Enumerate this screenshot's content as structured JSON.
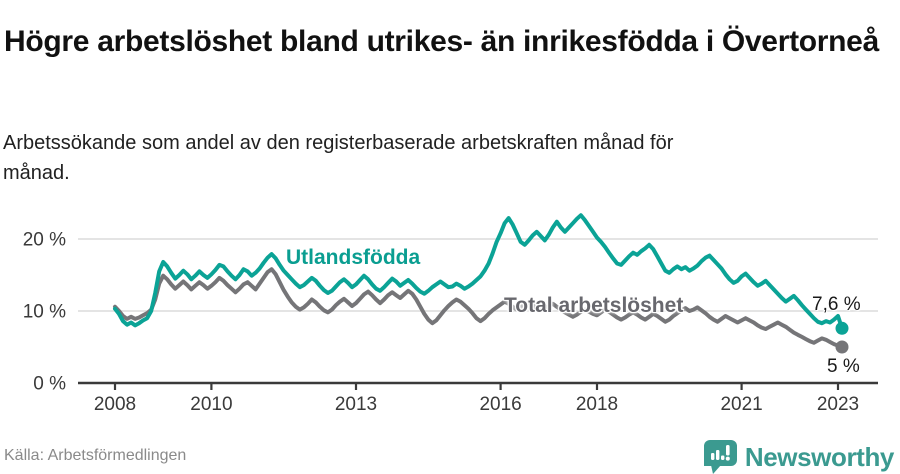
{
  "chart_data": {
    "type": "line",
    "title": "Högre arbetslöshet bland utrikes- än inrikesfödda i Övertorneå",
    "subtitle": "Arbetssökande som andel av den registerbaserade arbetskraften månad för månad.",
    "source": "Källa: Arbetsförmedlingen",
    "x_start_year": 2008,
    "x_unit": "month",
    "x_ticks": [
      2008,
      2010,
      2013,
      2016,
      2018,
      2021,
      2023
    ],
    "y_ticks": [
      0,
      10,
      20
    ],
    "y_tick_labels": [
      "0 %",
      "10 %",
      "20 %"
    ],
    "ylim": [
      0,
      24
    ],
    "grid": "horizontal",
    "legend_position": "inline-labels",
    "series": [
      {
        "name": "Utlandsfödda",
        "color": "#0ba396",
        "label_color": "#0a9e91",
        "end_label": "7,6 %",
        "end_value": 7.6,
        "values": [
          10.3,
          9.6,
          8.6,
          8.1,
          8.4,
          8.0,
          8.3,
          8.7,
          9.0,
          10.0,
          12.5,
          15.5,
          16.8,
          16.2,
          15.3,
          14.5,
          15.0,
          15.6,
          15.1,
          14.4,
          14.9,
          15.5,
          15.0,
          14.6,
          15.1,
          15.7,
          16.4,
          16.2,
          15.5,
          14.9,
          14.4,
          15.0,
          15.8,
          15.5,
          14.9,
          15.3,
          15.9,
          16.7,
          17.4,
          17.9,
          17.3,
          16.4,
          15.6,
          15.0,
          14.4,
          13.8,
          13.3,
          13.6,
          14.1,
          14.6,
          14.2,
          13.5,
          12.9,
          12.5,
          12.8,
          13.4,
          14.0,
          14.4,
          13.9,
          13.3,
          13.7,
          14.3,
          14.9,
          14.4,
          13.7,
          13.1,
          12.8,
          13.3,
          13.9,
          14.5,
          14.1,
          13.5,
          13.9,
          14.3,
          13.8,
          13.2,
          12.7,
          12.4,
          12.8,
          13.3,
          13.7,
          14.1,
          13.7,
          13.3,
          13.4,
          13.8,
          13.5,
          13.1,
          13.4,
          13.8,
          14.3,
          14.8,
          15.6,
          16.6,
          18.0,
          19.6,
          20.8,
          22.2,
          22.9,
          22.0,
          20.8,
          19.6,
          19.2,
          19.8,
          20.5,
          21.0,
          20.4,
          19.8,
          20.6,
          21.6,
          22.4,
          21.6,
          21.0,
          21.6,
          22.2,
          22.8,
          23.3,
          22.6,
          21.8,
          21.0,
          20.2,
          19.6,
          18.9,
          18.1,
          17.3,
          16.6,
          16.4,
          17.0,
          17.6,
          18.1,
          17.8,
          18.3,
          18.7,
          19.2,
          18.6,
          17.6,
          16.6,
          15.6,
          15.3,
          15.8,
          16.2,
          15.8,
          16.1,
          15.6,
          15.9,
          16.3,
          16.9,
          17.4,
          17.7,
          17.1,
          16.5,
          15.9,
          15.1,
          14.4,
          13.9,
          14.2,
          14.8,
          15.2,
          14.6,
          14.0,
          13.5,
          13.8,
          14.2,
          13.6,
          13.0,
          12.4,
          11.8,
          11.3,
          11.7,
          12.1,
          11.5,
          10.8,
          10.2,
          9.6,
          9.0,
          8.5,
          8.3,
          8.6,
          8.4,
          8.8,
          9.3,
          7.6
        ]
      },
      {
        "name": "Total arbetslöshet",
        "color": "#757578",
        "label_color": "#68686e",
        "end_label": "5 %",
        "end_value": 5.0,
        "values": [
          10.6,
          10.0,
          9.3,
          8.9,
          9.2,
          8.9,
          9.1,
          9.4,
          9.7,
          10.2,
          11.6,
          13.8,
          14.9,
          14.4,
          13.7,
          13.1,
          13.6,
          14.1,
          13.6,
          13.0,
          13.5,
          14.0,
          13.6,
          13.1,
          13.5,
          14.0,
          14.6,
          14.2,
          13.6,
          13.1,
          12.6,
          13.1,
          13.7,
          14.0,
          13.5,
          13.0,
          13.8,
          14.6,
          15.4,
          15.8,
          15.1,
          14.0,
          12.9,
          12.0,
          11.2,
          10.6,
          10.2,
          10.5,
          11.0,
          11.6,
          11.2,
          10.6,
          10.1,
          9.8,
          10.2,
          10.8,
          11.3,
          11.7,
          11.2,
          10.7,
          11.1,
          11.7,
          12.3,
          12.7,
          12.2,
          11.6,
          11.1,
          11.6,
          12.2,
          12.6,
          12.2,
          11.8,
          12.3,
          12.8,
          12.4,
          11.6,
          10.6,
          9.6,
          8.8,
          8.3,
          8.7,
          9.4,
          10.1,
          10.7,
          11.2,
          11.6,
          11.3,
          10.8,
          10.3,
          9.7,
          9.0,
          8.6,
          9.0,
          9.6,
          10.1,
          10.5,
          10.9,
          11.3,
          11.0,
          10.6,
          10.2,
          10.5,
          10.9,
          11.2,
          10.8,
          10.4,
          10.1,
          10.4,
          10.7,
          11.0,
          10.6,
          10.2,
          9.8,
          9.5,
          9.2,
          9.5,
          9.9,
          10.2,
          9.9,
          9.6,
          9.4,
          9.8,
          10.2,
          9.9,
          9.5,
          9.1,
          8.8,
          9.1,
          9.5,
          9.8,
          9.5,
          9.1,
          8.8,
          9.2,
          9.6,
          9.3,
          8.9,
          8.5,
          8.8,
          9.3,
          9.7,
          10.1,
          10.4,
          10.0,
          10.2,
          10.5,
          10.1,
          9.7,
          9.2,
          8.8,
          8.5,
          8.9,
          9.3,
          9.0,
          8.7,
          8.4,
          8.7,
          9.0,
          8.7,
          8.4,
          8.0,
          7.7,
          7.5,
          7.8,
          8.1,
          8.4,
          8.1,
          7.8,
          7.4,
          7.0,
          6.7,
          6.4,
          6.1,
          5.8,
          5.6,
          5.9,
          6.2,
          6.0,
          5.7,
          5.4,
          5.2,
          5.0
        ]
      }
    ],
    "colors": {
      "axis": "#3a3a3a",
      "gridline": "#dcdcdc",
      "brand_teal": "#3b9a90"
    }
  },
  "footer": {
    "brand": "Newsworthy"
  }
}
